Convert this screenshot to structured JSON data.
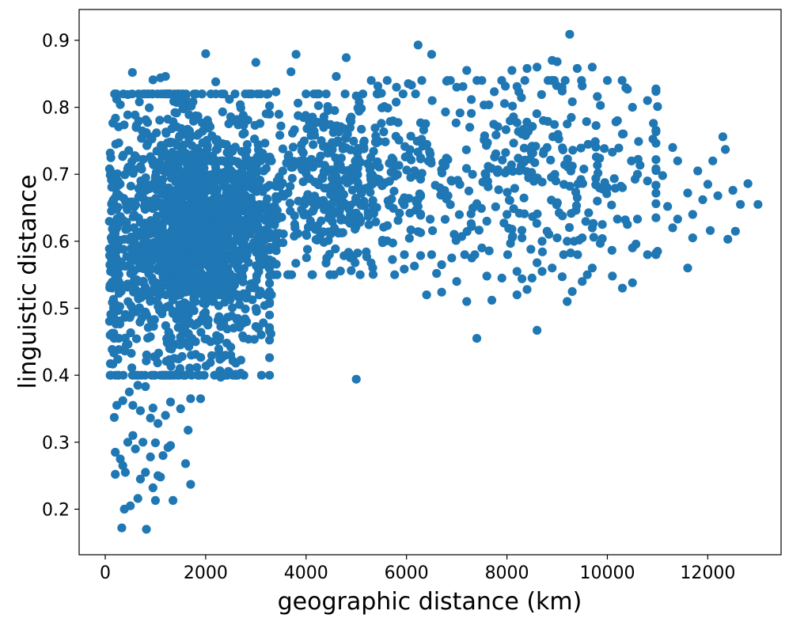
{
  "chart_data": {
    "type": "scatter",
    "title": "",
    "xlabel": "geographic distance (km)",
    "ylabel": "linguistic distance",
    "xlim": [
      -520,
      13460
    ],
    "ylim": [
      0.132,
      0.946
    ],
    "xticks": [
      "0",
      "2000",
      "4000",
      "6000",
      "8000",
      "10000",
      "12000"
    ],
    "yticks": [
      "0.2",
      "0.3",
      "0.4",
      "0.5",
      "0.6",
      "0.7",
      "0.8",
      "0.9"
    ],
    "grid": false,
    "legend": "none",
    "marker_color": "#1f77b4",
    "series": [
      {
        "name": "",
        "points": [
          [
            9250,
            0.909
          ],
          [
            6230,
            0.893
          ],
          [
            2000,
            0.88
          ],
          [
            3800,
            0.879
          ],
          [
            6500,
            0.879
          ],
          [
            4800,
            0.874
          ],
          [
            3000,
            0.867
          ],
          [
            8900,
            0.87
          ],
          [
            9000,
            0.868
          ],
          [
            1200,
            0.846
          ],
          [
            1100,
            0.844
          ],
          [
            950,
            0.841
          ],
          [
            7500,
            0.84
          ],
          [
            8100,
            0.855
          ],
          [
            8600,
            0.86
          ],
          [
            9700,
            0.86
          ],
          [
            9400,
            0.858
          ],
          [
            10000,
            0.84
          ],
          [
            540,
            0.852
          ],
          [
            4600,
            0.846
          ],
          [
            5800,
            0.83
          ],
          [
            6100,
            0.833
          ],
          [
            7200,
            0.855
          ],
          [
            8400,
            0.858
          ],
          [
            8200,
            0.831
          ],
          [
            10400,
            0.827
          ],
          [
            9500,
            0.832
          ],
          [
            300,
            0.804
          ],
          [
            450,
            0.819
          ],
          [
            680,
            0.808
          ],
          [
            1400,
            0.812
          ],
          [
            2700,
            0.799
          ],
          [
            4400,
            0.82
          ],
          [
            5000,
            0.817
          ],
          [
            5500,
            0.821
          ],
          [
            6800,
            0.839
          ],
          [
            7000,
            0.83
          ],
          [
            9800,
            0.816
          ],
          [
            10800,
            0.81
          ],
          [
            11000,
            0.801
          ],
          [
            10500,
            0.8
          ],
          [
            3400,
            0.823
          ],
          [
            3700,
            0.853
          ],
          [
            2200,
            0.838
          ],
          [
            1600,
            0.815
          ],
          [
            9200,
            0.775
          ],
          [
            10200,
            0.78
          ],
          [
            8800,
            0.74
          ],
          [
            8500,
            0.742
          ],
          [
            8300,
            0.76
          ],
          [
            11300,
            0.74
          ],
          [
            10300,
            0.76
          ],
          [
            10100,
            0.733
          ],
          [
            12300,
            0.756
          ],
          [
            12350,
            0.737
          ],
          [
            11400,
            0.72
          ],
          [
            11800,
            0.705
          ],
          [
            12100,
            0.72
          ],
          [
            10600,
            0.7
          ],
          [
            11100,
            0.698
          ],
          [
            10800,
            0.69
          ],
          [
            12800,
            0.686
          ],
          [
            12500,
            0.676
          ],
          [
            12200,
            0.668
          ],
          [
            12000,
            0.685
          ],
          [
            11600,
            0.672
          ],
          [
            12650,
            0.655
          ],
          [
            13000,
            0.655
          ],
          [
            12050,
            0.616
          ],
          [
            12400,
            0.603
          ],
          [
            12550,
            0.615
          ],
          [
            11700,
            0.64
          ],
          [
            11400,
            0.633
          ],
          [
            11200,
            0.652
          ],
          [
            11900,
            0.662
          ],
          [
            11700,
            0.605
          ],
          [
            11600,
            0.56
          ],
          [
            11000,
            0.585
          ],
          [
            10800,
            0.58
          ],
          [
            11300,
            0.62
          ],
          [
            10600,
            0.633
          ],
          [
            10400,
            0.625
          ],
          [
            10200,
            0.633
          ],
          [
            10500,
            0.59
          ],
          [
            10500,
            0.538
          ],
          [
            10300,
            0.53
          ],
          [
            10100,
            0.548
          ],
          [
            9700,
            0.56
          ],
          [
            9600,
            0.55
          ],
          [
            9500,
            0.54
          ],
          [
            9300,
            0.525
          ],
          [
            9200,
            0.51
          ],
          [
            9700,
            0.62
          ],
          [
            9900,
            0.625
          ],
          [
            9800,
            0.66
          ],
          [
            10000,
            0.68
          ],
          [
            10300,
            0.68
          ],
          [
            9400,
            0.665
          ],
          [
            9900,
            0.604
          ],
          [
            9500,
            0.605
          ],
          [
            9200,
            0.6
          ],
          [
            9000,
            0.605
          ],
          [
            8800,
            0.615
          ],
          [
            8700,
            0.6
          ],
          [
            8600,
            0.568
          ],
          [
            8700,
            0.555
          ],
          [
            8500,
            0.545
          ],
          [
            8900,
            0.56
          ],
          [
            9100,
            0.547
          ],
          [
            8600,
            0.467
          ],
          [
            8200,
            0.52
          ],
          [
            8400,
            0.528
          ],
          [
            8300,
            0.544
          ],
          [
            8200,
            0.555
          ],
          [
            7900,
            0.545
          ],
          [
            7700,
            0.512
          ],
          [
            7600,
            0.548
          ],
          [
            7400,
            0.455
          ],
          [
            7200,
            0.51
          ],
          [
            7000,
            0.54
          ],
          [
            6900,
            0.575
          ],
          [
            6700,
            0.565
          ],
          [
            6700,
            0.524
          ],
          [
            6600,
            0.552
          ],
          [
            6500,
            0.58
          ],
          [
            6400,
            0.52
          ],
          [
            7300,
            0.575
          ],
          [
            7100,
            0.607
          ],
          [
            7600,
            0.63
          ],
          [
            7500,
            0.59
          ],
          [
            8100,
            0.618
          ],
          [
            8300,
            0.605
          ],
          [
            8000,
            0.64
          ],
          [
            5000,
            0.394
          ],
          [
            3300,
            0.462
          ],
          [
            2700,
            0.403
          ],
          [
            2600,
            0.418
          ],
          [
            2400,
            0.43
          ],
          [
            2300,
            0.397
          ],
          [
            2500,
            0.442
          ],
          [
            2100,
            0.45
          ],
          [
            1900,
            0.365
          ],
          [
            1700,
            0.365
          ],
          [
            1500,
            0.35
          ],
          [
            1300,
            0.36
          ],
          [
            1200,
            0.34
          ],
          [
            900,
            0.336
          ],
          [
            1050,
            0.328
          ],
          [
            700,
            0.347
          ],
          [
            950,
            0.351
          ],
          [
            180,
            0.337
          ],
          [
            230,
            0.355
          ],
          [
            350,
            0.362
          ],
          [
            480,
            0.375
          ],
          [
            550,
            0.355
          ],
          [
            650,
            0.385
          ],
          [
            800,
            0.383
          ],
          [
            200,
            0.285
          ],
          [
            300,
            0.275
          ],
          [
            350,
            0.265
          ],
          [
            450,
            0.3
          ],
          [
            550,
            0.31
          ],
          [
            600,
            0.29
          ],
          [
            750,
            0.3
          ],
          [
            900,
            0.278
          ],
          [
            1000,
            0.299
          ],
          [
            1150,
            0.28
          ],
          [
            1250,
            0.292
          ],
          [
            1300,
            0.295
          ],
          [
            1600,
            0.268
          ],
          [
            1650,
            0.318
          ],
          [
            1700,
            0.237
          ],
          [
            200,
            0.252
          ],
          [
            400,
            0.255
          ],
          [
            500,
            0.205
          ],
          [
            380,
            0.2
          ],
          [
            330,
            0.172
          ],
          [
            820,
            0.17
          ],
          [
            650,
            0.216
          ],
          [
            800,
            0.255
          ],
          [
            950,
            0.232
          ],
          [
            1000,
            0.213
          ],
          [
            1100,
            0.248
          ],
          [
            1350,
            0.213
          ],
          [
            700,
            0.245
          ],
          [
            1050,
            0.25
          ]
        ],
        "n_points_approx": 2500
      }
    ],
    "density_clusters": [
      {
        "x_range": [
          100,
          3000
        ],
        "y_range": [
          0.4,
          0.82
        ],
        "weight": 0.5
      },
      {
        "x_range": [
          1000,
          3200
        ],
        "y_range": [
          0.52,
          0.72
        ],
        "weight": 0.2
      },
      {
        "x_range": [
          3000,
          6000
        ],
        "y_range": [
          0.55,
          0.82
        ],
        "weight": 0.18
      },
      {
        "x_range": [
          5500,
          10500
        ],
        "y_range": [
          0.58,
          0.84
        ],
        "weight": 0.12
      }
    ]
  }
}
